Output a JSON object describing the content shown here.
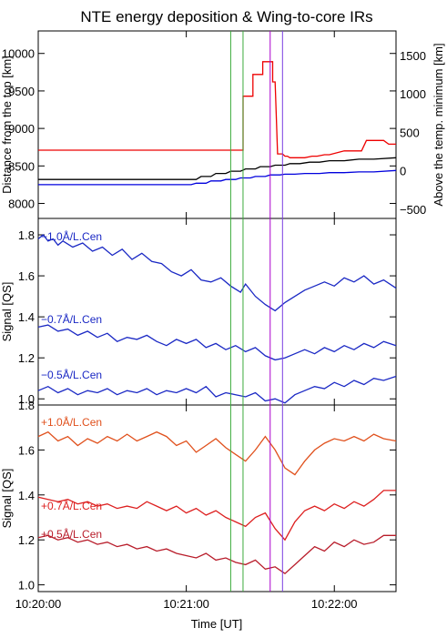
{
  "chart_data": [
    {
      "type": "line",
      "panel": "top",
      "title": "NTE energy deposition  &  Wing-to-core IRs",
      "ylabel": "Distance from the top [km]",
      "ylabel_right": "Above the temp. minimum [km]",
      "ylim": [
        10300,
        7800
      ],
      "yticks": [
        8000,
        8500,
        9000,
        9500,
        10000
      ],
      "ylim_right": [
        -620,
        1820
      ],
      "yticks_right": [
        1500,
        1000,
        500,
        0,
        -500
      ],
      "yticks_right_labels": [
        "1500",
        "1000",
        "500",
        "0",
        "−500"
      ],
      "series": [
        {
          "color": "#0000dd",
          "x": [
            0,
            62,
            64,
            68,
            70,
            74,
            76,
            80,
            82,
            86,
            88,
            92,
            94,
            98,
            100,
            104,
            108,
            114,
            118,
            124,
            130,
            136,
            145
          ],
          "y": [
            8250,
            8250,
            8270,
            8270,
            8300,
            8300,
            8320,
            8320,
            8340,
            8340,
            8360,
            8360,
            8380,
            8380,
            8390,
            8390,
            8400,
            8400,
            8410,
            8410,
            8420,
            8420,
            8440
          ]
        },
        {
          "color": "#000000",
          "x": [
            0,
            64,
            66,
            70,
            72,
            76,
            78,
            82,
            84,
            88,
            90,
            94,
            96,
            100,
            102,
            106,
            110,
            114,
            118,
            124,
            130,
            136,
            145
          ],
          "y": [
            8320,
            8320,
            8360,
            8360,
            8400,
            8400,
            8430,
            8430,
            8460,
            8460,
            8490,
            8490,
            8510,
            8510,
            8530,
            8530,
            8550,
            8550,
            8570,
            8570,
            8590,
            8590,
            8610
          ]
        },
        {
          "color": "#ee0000",
          "x": [
            0,
            83,
            83,
            87,
            87,
            91,
            91,
            95,
            95,
            96,
            97,
            99,
            100,
            101,
            102,
            106,
            108,
            111,
            113,
            116,
            118,
            124,
            131,
            133,
            140,
            142,
            145
          ],
          "y": [
            8710,
            8710,
            9430,
            9430,
            9720,
            9720,
            9890,
            9890,
            9620,
            9620,
            8660,
            8660,
            8630,
            8630,
            8610,
            8610,
            8610,
            8630,
            8630,
            8650,
            8650,
            8700,
            8700,
            8840,
            8840,
            8790,
            8790
          ]
        }
      ]
    },
    {
      "type": "line",
      "panel": "middle",
      "ylabel": "Signal [QS]",
      "ylim": [
        0.97,
        1.88
      ],
      "yticks": [
        1.0,
        1.2,
        1.4,
        1.6,
        1.8
      ],
      "yticks_labels": [
        "1.0",
        "1.2",
        "1.4",
        "1.6",
        "1.8"
      ],
      "series": [
        {
          "name": "−1.0Å/L.Cen",
          "color": "#1a28c4",
          "x": [
            0,
            2,
            4,
            6,
            8,
            10,
            14,
            18,
            22,
            26,
            30,
            34,
            38,
            42,
            46,
            50,
            54,
            58,
            62,
            66,
            70,
            74,
            78,
            82,
            84,
            88,
            92,
            96,
            100,
            104,
            108,
            112,
            116,
            120,
            124,
            128,
            132,
            136,
            140,
            145
          ],
          "y": [
            1.78,
            1.8,
            1.77,
            1.78,
            1.75,
            1.77,
            1.74,
            1.76,
            1.72,
            1.74,
            1.7,
            1.73,
            1.68,
            1.71,
            1.67,
            1.66,
            1.62,
            1.6,
            1.63,
            1.58,
            1.57,
            1.59,
            1.55,
            1.52,
            1.56,
            1.5,
            1.46,
            1.43,
            1.47,
            1.5,
            1.53,
            1.55,
            1.57,
            1.55,
            1.59,
            1.57,
            1.6,
            1.56,
            1.58,
            1.54
          ]
        },
        {
          "name": "−0.7Å/L.Cen",
          "color": "#1a28c4",
          "x": [
            0,
            4,
            8,
            12,
            16,
            20,
            24,
            28,
            32,
            36,
            40,
            44,
            48,
            52,
            56,
            60,
            64,
            68,
            72,
            76,
            80,
            84,
            88,
            92,
            96,
            100,
            104,
            108,
            112,
            116,
            120,
            124,
            128,
            132,
            136,
            140,
            145
          ],
          "y": [
            1.35,
            1.36,
            1.33,
            1.34,
            1.31,
            1.33,
            1.3,
            1.32,
            1.28,
            1.3,
            1.29,
            1.31,
            1.28,
            1.26,
            1.29,
            1.27,
            1.29,
            1.25,
            1.27,
            1.24,
            1.26,
            1.23,
            1.25,
            1.21,
            1.19,
            1.2,
            1.22,
            1.24,
            1.22,
            1.25,
            1.23,
            1.26,
            1.24,
            1.27,
            1.25,
            1.28,
            1.26
          ]
        },
        {
          "name": "−0.5Å/L.Cen",
          "color": "#1a28c4",
          "x": [
            0,
            4,
            8,
            12,
            16,
            20,
            24,
            28,
            32,
            36,
            40,
            44,
            48,
            52,
            56,
            60,
            64,
            68,
            72,
            76,
            80,
            84,
            88,
            92,
            96,
            100,
            104,
            108,
            112,
            116,
            120,
            124,
            128,
            132,
            136,
            140,
            145
          ],
          "y": [
            1.04,
            1.06,
            1.03,
            1.05,
            1.02,
            1.04,
            1.03,
            1.05,
            1.02,
            1.04,
            1.03,
            1.05,
            1.02,
            1.04,
            1.03,
            1.05,
            1.03,
            1.06,
            1.01,
            1.03,
            1.02,
            1.01,
            1.03,
            0.99,
            1.0,
            0.98,
            1.02,
            1.04,
            1.06,
            1.05,
            1.08,
            1.06,
            1.09,
            1.07,
            1.1,
            1.09,
            1.11
          ]
        }
      ]
    },
    {
      "type": "line",
      "panel": "bottom",
      "ylabel": "Signal [QS]",
      "ylim": [
        0.97,
        1.8
      ],
      "yticks": [
        1.0,
        1.2,
        1.4,
        1.6,
        1.8
      ],
      "yticks_labels": [
        "1.0",
        "1.2",
        "1.4",
        "1.6",
        "1.8"
      ],
      "xlabel": "Time [UT]",
      "xlim": [
        0,
        145
      ],
      "xticks": [
        0,
        60,
        120
      ],
      "xtick_labels": [
        "10:20:00",
        "10:21:00",
        "10:22:00"
      ],
      "series": [
        {
          "name": "+1.0Å/L.Cen",
          "color": "#e0501c",
          "x": [
            0,
            4,
            8,
            12,
            16,
            20,
            24,
            28,
            32,
            36,
            40,
            44,
            48,
            52,
            56,
            60,
            64,
            68,
            72,
            76,
            80,
            84,
            88,
            92,
            96,
            100,
            104,
            108,
            112,
            116,
            120,
            124,
            128,
            132,
            136,
            140,
            145
          ],
          "y": [
            1.66,
            1.68,
            1.64,
            1.66,
            1.62,
            1.65,
            1.63,
            1.66,
            1.64,
            1.67,
            1.64,
            1.66,
            1.68,
            1.66,
            1.62,
            1.64,
            1.59,
            1.62,
            1.65,
            1.61,
            1.58,
            1.55,
            1.6,
            1.66,
            1.6,
            1.52,
            1.49,
            1.55,
            1.6,
            1.63,
            1.65,
            1.64,
            1.66,
            1.64,
            1.67,
            1.65,
            1.64
          ]
        },
        {
          "name": "+0.7Å/L.Cen",
          "color": "#dd1f1f",
          "x": [
            0,
            4,
            8,
            12,
            16,
            20,
            24,
            28,
            32,
            36,
            40,
            44,
            48,
            52,
            56,
            60,
            64,
            68,
            72,
            76,
            80,
            84,
            88,
            92,
            96,
            100,
            104,
            108,
            112,
            116,
            120,
            124,
            128,
            132,
            136,
            140,
            145
          ],
          "y": [
            1.39,
            1.38,
            1.37,
            1.38,
            1.36,
            1.37,
            1.35,
            1.36,
            1.34,
            1.35,
            1.34,
            1.37,
            1.35,
            1.33,
            1.35,
            1.32,
            1.34,
            1.31,
            1.33,
            1.3,
            1.28,
            1.26,
            1.3,
            1.32,
            1.25,
            1.2,
            1.28,
            1.33,
            1.35,
            1.33,
            1.36,
            1.34,
            1.37,
            1.35,
            1.38,
            1.42,
            1.42
          ]
        },
        {
          "name": "+0.5Å/L.Cen",
          "color": "#b81c2a",
          "x": [
            0,
            4,
            8,
            12,
            16,
            20,
            24,
            28,
            32,
            36,
            40,
            44,
            48,
            52,
            56,
            60,
            64,
            68,
            72,
            76,
            80,
            84,
            88,
            92,
            96,
            100,
            104,
            108,
            112,
            116,
            120,
            124,
            128,
            132,
            136,
            140,
            145
          ],
          "y": [
            1.21,
            1.22,
            1.2,
            1.21,
            1.19,
            1.2,
            1.18,
            1.19,
            1.17,
            1.18,
            1.16,
            1.17,
            1.15,
            1.16,
            1.14,
            1.13,
            1.12,
            1.14,
            1.11,
            1.12,
            1.1,
            1.09,
            1.11,
            1.07,
            1.08,
            1.05,
            1.09,
            1.13,
            1.17,
            1.15,
            1.19,
            1.17,
            1.2,
            1.18,
            1.19,
            1.22,
            1.22
          ]
        }
      ]
    }
  ],
  "markers": [
    {
      "x": 78,
      "color": "#3aaa3a"
    },
    {
      "x": 83,
      "color": "#3aaa3a"
    },
    {
      "x": 94,
      "color": "#aa00cc"
    },
    {
      "x": 99,
      "color": "#7a3ee0"
    }
  ]
}
